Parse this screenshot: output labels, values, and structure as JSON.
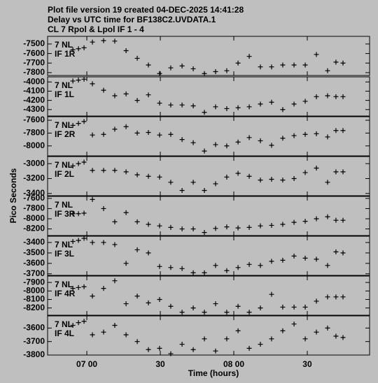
{
  "header": {
    "lines": [
      "Plot file version 19  created 04-DEC-2025 14:41:28",
      "Delay vs UTC time for BF138C2.UVDATA.1",
      "CL 7  Rpol & Lpol  IF 1 - 4"
    ]
  },
  "y_label": "Pico Seconds",
  "x_label": "Time (hours)",
  "chart_data": [
    {
      "type": "scatter",
      "label_lines": [
        "7 NL",
        "IF 1R"
      ],
      "xlim": [
        6.733,
        8.924
      ],
      "ylim": [
        -7830,
        -7420
      ],
      "yticks": [
        -7500,
        -7600,
        -7700,
        -7800
      ],
      "xticks": [
        {
          "value": 7.0,
          "label": "07 00"
        },
        {
          "value": 7.5,
          "label": "30"
        },
        {
          "value": 8.0,
          "label": "08 00"
        },
        {
          "value": 8.5,
          "label": "30"
        }
      ],
      "x": [
        6.905,
        6.943,
        6.981,
        7.038,
        7.114,
        7.19,
        7.267,
        7.343,
        7.419,
        7.495,
        7.571,
        7.648,
        7.724,
        7.8,
        7.876,
        7.952,
        8.029,
        8.105,
        8.181,
        8.257,
        8.333,
        8.41,
        8.486,
        8.562,
        8.638,
        8.695,
        8.743
      ],
      "values": [
        -7560,
        -7550,
        -7540,
        -7480,
        -7465,
        -7470,
        -7570,
        -7650,
        -7720,
        -7810,
        -7750,
        -7730,
        -7760,
        -7810,
        -7790,
        -7780,
        -7700,
        -7630,
        -7740,
        -7740,
        -7720,
        -7720,
        -7720,
        -7610,
        -7780,
        -7690,
        -7700
      ]
    },
    {
      "type": "scatter",
      "label_lines": [
        "7 NL",
        "IF 1L"
      ],
      "xlim": [
        6.733,
        8.924
      ],
      "ylim": [
        -4370,
        -3945
      ],
      "yticks": [
        -4000,
        -4100,
        -4200,
        -4300
      ],
      "xticks": [
        {
          "value": 7.0,
          "label": "07 00"
        },
        {
          "value": 7.5,
          "label": "30"
        },
        {
          "value": 8.0,
          "label": "08 00"
        },
        {
          "value": 8.5,
          "label": "30"
        }
      ],
      "x": [
        6.905,
        6.943,
        6.981,
        7.038,
        7.114,
        7.19,
        7.267,
        7.343,
        7.419,
        7.495,
        7.571,
        7.648,
        7.724,
        7.8,
        7.876,
        7.952,
        8.029,
        8.105,
        8.181,
        8.257,
        8.333,
        8.41,
        8.486,
        8.562,
        8.638,
        8.695,
        8.743
      ],
      "values": [
        -3990,
        -3980,
        -3970,
        -4020,
        -4090,
        -4150,
        -4130,
        -4200,
        -4140,
        -4230,
        -4250,
        -4250,
        -4260,
        -4330,
        -4270,
        -4290,
        -4280,
        -4270,
        -4240,
        -4220,
        -4300,
        -4240,
        -4210,
        -4160,
        -4150,
        -4160,
        -4160
      ]
    },
    {
      "type": "scatter",
      "label_lines": [
        "7 NL",
        "IF 2R"
      ],
      "xlim": [
        6.733,
        8.924
      ],
      "ylim": [
        -8155,
        -7545
      ],
      "yticks": [
        -7600,
        -7800,
        -8000
      ],
      "xticks": [
        {
          "value": 7.0,
          "label": "07 00"
        },
        {
          "value": 7.5,
          "label": "30"
        },
        {
          "value": 8.0,
          "label": "08 00"
        },
        {
          "value": 8.5,
          "label": "30"
        }
      ],
      "x": [
        6.905,
        6.943,
        6.981,
        7.038,
        7.114,
        7.19,
        7.267,
        7.343,
        7.419,
        7.495,
        7.571,
        7.648,
        7.724,
        7.8,
        7.876,
        7.952,
        8.029,
        8.105,
        8.181,
        8.257,
        8.333,
        8.41,
        8.486,
        8.562,
        8.638,
        8.695,
        8.743
      ],
      "values": [
        -7680,
        -7650,
        -7620,
        -7830,
        -7820,
        -7740,
        -7700,
        -7800,
        -7790,
        -7830,
        -7820,
        -7900,
        -7950,
        -8080,
        -7980,
        -8000,
        -7940,
        -7870,
        -7920,
        -7990,
        -7880,
        -7840,
        -7820,
        -7810,
        -7860,
        -7760,
        -7760
      ]
    },
    {
      "type": "scatter",
      "label_lines": [
        "7 NL",
        "IF 2L"
      ],
      "xlim": [
        6.733,
        8.924
      ],
      "ylim": [
        -3430,
        -2905
      ],
      "yticks": [
        -3000,
        -3200,
        -3400
      ],
      "xticks": [
        {
          "value": 7.0,
          "label": "07 00"
        },
        {
          "value": 7.5,
          "label": "30"
        },
        {
          "value": 8.0,
          "label": "08 00"
        },
        {
          "value": 8.5,
          "label": "30"
        }
      ],
      "x": [
        6.905,
        6.943,
        6.981,
        7.038,
        7.114,
        7.19,
        7.267,
        7.343,
        7.419,
        7.495,
        7.571,
        7.648,
        7.724,
        7.8,
        7.876,
        7.952,
        8.029,
        8.105,
        8.181,
        8.257,
        8.333,
        8.41,
        8.486,
        8.562,
        8.638,
        8.695,
        8.743
      ],
      "values": [
        -3030,
        -3000,
        -2980,
        -3090,
        -3090,
        -3090,
        -3110,
        -3150,
        -3170,
        -3180,
        -3250,
        -3360,
        -3250,
        -3360,
        -3270,
        -3180,
        -3130,
        -3170,
        -3220,
        -3210,
        -3220,
        -3200,
        -3120,
        -3060,
        -3250,
        -3110,
        -3110
      ]
    },
    {
      "type": "scatter",
      "label_lines": [
        "7 NL",
        "IF 3R"
      ],
      "xlim": [
        6.733,
        8.924
      ],
      "ylim": [
        -8330,
        -7560
      ],
      "yticks": [
        -7600,
        -7800,
        -8000,
        -8200
      ],
      "xticks": [
        {
          "value": 7.0,
          "label": "07 00"
        },
        {
          "value": 7.5,
          "label": "30"
        },
        {
          "value": 8.0,
          "label": "08 00"
        },
        {
          "value": 8.5,
          "label": "30"
        }
      ],
      "x": [
        6.905,
        6.943,
        6.981,
        7.038,
        7.114,
        7.19,
        7.267,
        7.343,
        7.419,
        7.495,
        7.571,
        7.648,
        7.724,
        7.8,
        7.876,
        7.952,
        8.029,
        8.105,
        8.181,
        8.257,
        8.333,
        8.41,
        8.486,
        8.562,
        8.638,
        8.695,
        8.743
      ],
      "values": [
        -7900,
        -7900,
        -7890,
        -7620,
        -7800,
        -8060,
        -7880,
        -8060,
        -8110,
        -8140,
        -8170,
        -8200,
        -8200,
        -8270,
        -8190,
        -8160,
        -8180,
        -8170,
        -8140,
        -8130,
        -8110,
        -8070,
        -8050,
        -8000,
        -7960,
        -8030,
        -8030
      ]
    },
    {
      "type": "scatter",
      "label_lines": [
        "7 NL",
        "IF 3L"
      ],
      "xlim": [
        6.733,
        8.924
      ],
      "ylim": [
        -3715,
        -3340
      ],
      "yticks": [
        -3400,
        -3500,
        -3600,
        -3700
      ],
      "xticks": [
        {
          "value": 7.0,
          "label": "07 00"
        },
        {
          "value": 7.5,
          "label": "30"
        },
        {
          "value": 8.0,
          "label": "08 00"
        },
        {
          "value": 8.5,
          "label": "30"
        }
      ],
      "x": [
        6.905,
        6.943,
        6.981,
        7.038,
        7.114,
        7.19,
        7.267,
        7.343,
        7.419,
        7.495,
        7.571,
        7.648,
        7.724,
        7.8,
        7.876,
        7.952,
        8.029,
        8.105,
        8.181,
        8.257,
        8.333,
        8.41,
        8.486,
        8.562,
        8.638,
        8.695,
        8.743
      ],
      "values": [
        -3390,
        -3380,
        -3360,
        -3400,
        -3400,
        -3420,
        -3600,
        -3470,
        -3500,
        -3630,
        -3640,
        -3650,
        -3690,
        -3690,
        -3620,
        -3670,
        -3640,
        -3610,
        -3620,
        -3580,
        -3570,
        -3530,
        -3550,
        -3560,
        -3620,
        -3490,
        -3500
      ]
    },
    {
      "type": "scatter",
      "label_lines": [
        "7 NL",
        "IF 4R"
      ],
      "xlim": [
        6.733,
        8.924
      ],
      "ylim": [
        -8285,
        -7825
      ],
      "yticks": [
        -7900,
        -8000,
        -8100,
        -8200
      ],
      "xticks": [
        {
          "value": 7.0,
          "label": "07 00"
        },
        {
          "value": 7.5,
          "label": "30"
        },
        {
          "value": 8.0,
          "label": "08 00"
        },
        {
          "value": 8.5,
          "label": "30"
        }
      ],
      "x": [
        6.905,
        6.943,
        6.981,
        7.038,
        7.114,
        7.19,
        7.267,
        7.343,
        7.419,
        7.495,
        7.571,
        7.648,
        7.724,
        7.8,
        7.876,
        7.952,
        8.029,
        8.105,
        8.181,
        8.257,
        8.333,
        8.41,
        8.486,
        8.562,
        8.638,
        8.695,
        8.743
      ],
      "values": [
        -7970,
        -7960,
        -7950,
        -8060,
        -7970,
        -7880,
        -8150,
        -8060,
        -8140,
        -8100,
        -8180,
        -8250,
        -8200,
        -8250,
        -8150,
        -8250,
        -8180,
        -8250,
        -8200,
        -8040,
        -8190,
        -8190,
        -8190,
        -8120,
        -8070,
        -8070,
        -8070
      ]
    },
    {
      "type": "scatter",
      "label_lines": [
        "7 NL",
        "IF 4L"
      ],
      "xlim": [
        6.733,
        8.924
      ],
      "ylim": [
        -3800,
        -3510
      ],
      "yticks": [
        -3600,
        -3700,
        -3800
      ],
      "xticks": [
        {
          "value": 7.0,
          "label": "07 00"
        },
        {
          "value": 7.5,
          "label": "30"
        },
        {
          "value": 8.0,
          "label": "08 00"
        },
        {
          "value": 8.5,
          "label": "30"
        }
      ],
      "x": [
        6.905,
        6.943,
        6.981,
        7.038,
        7.114,
        7.19,
        7.267,
        7.343,
        7.419,
        7.495,
        7.571,
        7.648,
        7.724,
        7.8,
        7.876,
        7.952,
        8.029,
        8.105,
        8.181,
        8.257,
        8.333,
        8.41,
        8.486,
        8.562,
        8.638,
        8.695,
        8.743
      ],
      "values": [
        -3580,
        -3560,
        -3550,
        -3650,
        -3630,
        -3580,
        -3650,
        -3700,
        -3760,
        -3750,
        -3790,
        -3720,
        -3760,
        -3680,
        -3770,
        -3680,
        -3620,
        -3750,
        -3720,
        -3680,
        -3620,
        -3570,
        -3680,
        -3630,
        -3600,
        -3660,
        -3670
      ]
    }
  ]
}
